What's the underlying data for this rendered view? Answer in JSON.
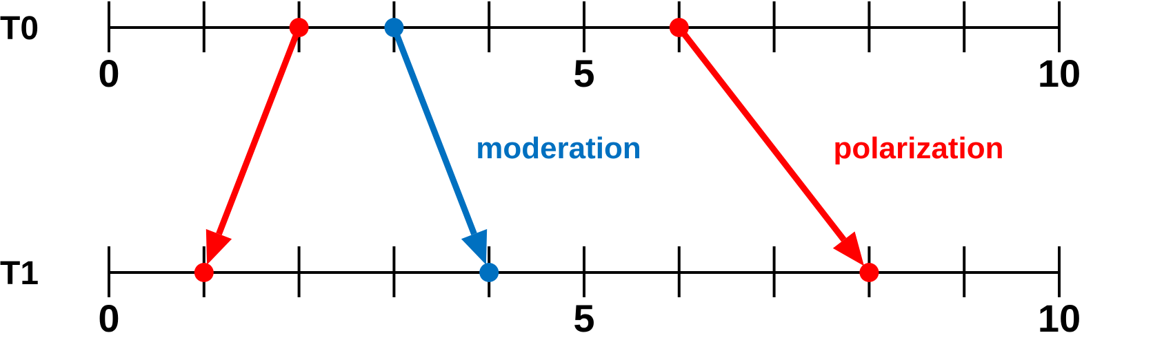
{
  "colors": {
    "axis": "#000000",
    "polarization": "#ff0000",
    "moderation": "#0070c0"
  },
  "scale": {
    "min": 0,
    "max": 10,
    "ticks": [
      0,
      1,
      2,
      3,
      4,
      5,
      6,
      7,
      8,
      9,
      10
    ],
    "tick_labels": [
      "0",
      "5",
      "10"
    ],
    "tick_label_values": [
      0,
      5,
      10
    ]
  },
  "timelines": [
    {
      "label": "T0"
    },
    {
      "label": "T1"
    }
  ],
  "moves": [
    {
      "from": 2,
      "to": 1,
      "color_key": "polarization"
    },
    {
      "from": 3,
      "to": 4,
      "color_key": "moderation"
    },
    {
      "from": 6,
      "to": 8,
      "color_key": "polarization"
    }
  ],
  "annotations": {
    "moderation": "moderation",
    "polarization": "polarization"
  }
}
